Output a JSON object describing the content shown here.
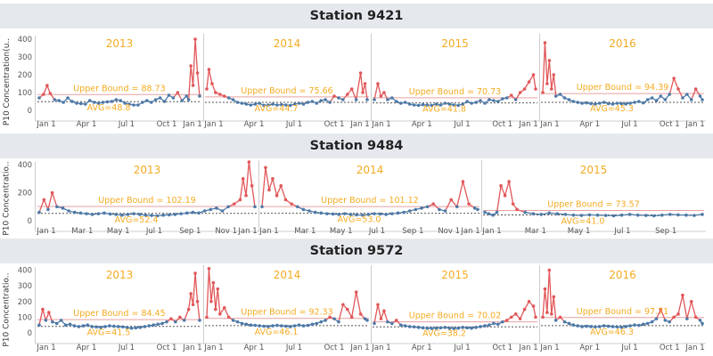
{
  "colors": {
    "normal": "#4e79a7",
    "exceed": "#e15759",
    "label": "#f4ab21",
    "header_bg": "#e5e9ee",
    "upper_line": "#e6a0a0",
    "avg_line": "#555555"
  },
  "chart_data": [
    {
      "type": "line",
      "title": "Station 9421",
      "ylabel": "P10 Concentration(u..",
      "ylim": [
        0,
        420
      ],
      "yticks": [
        0,
        100,
        200,
        300,
        400
      ],
      "panels": [
        {
          "year": "2013",
          "upper_bound_label": "Upper Bound = 88.73",
          "upper_bound": 88.73,
          "avg_label": "AVG=48.8",
          "avg": 48.8,
          "xticks": [
            "Jan 1",
            "Apr 1",
            "Jul 1",
            "Oct 1",
            "Jan 1"
          ],
          "x": [
            0,
            10,
            18,
            25,
            35,
            45,
            55,
            65,
            75,
            85,
            95,
            105,
            115,
            125,
            135,
            145,
            155,
            165,
            175,
            185,
            195,
            205,
            215,
            225,
            235,
            245,
            255,
            265,
            275,
            285,
            295,
            305,
            315,
            325,
            335,
            340,
            345,
            350,
            355,
            360,
            365
          ],
          "y": [
            70,
            90,
            140,
            95,
            60,
            55,
            45,
            70,
            50,
            40,
            38,
            35,
            55,
            45,
            40,
            45,
            48,
            50,
            60,
            55,
            40,
            35,
            30,
            30,
            45,
            55,
            45,
            60,
            70,
            50,
            85,
            70,
            100,
            55,
            80,
            60,
            250,
            140,
            400,
            210,
            80
          ]
        },
        {
          "year": "2014",
          "upper_bound_label": "Upper Bound = 75.66",
          "upper_bound": 75.66,
          "avg_label": "AVG=44.7",
          "avg": 44.7,
          "xticks": [
            "Jan 1",
            "Apr 1",
            "Jul 1",
            "Oct 1",
            "Jan 1"
          ],
          "x": [
            0,
            5,
            12,
            20,
            30,
            40,
            50,
            60,
            70,
            80,
            90,
            100,
            110,
            120,
            130,
            140,
            150,
            160,
            170,
            180,
            190,
            200,
            210,
            220,
            230,
            240,
            250,
            260,
            270,
            280,
            290,
            300,
            310,
            320,
            330,
            340,
            350,
            355,
            360,
            365
          ],
          "y": [
            120,
            230,
            150,
            100,
            90,
            80,
            70,
            60,
            45,
            40,
            35,
            30,
            35,
            40,
            28,
            30,
            35,
            30,
            32,
            30,
            28,
            35,
            40,
            35,
            45,
            50,
            40,
            55,
            60,
            45,
            80,
            70,
            60,
            90,
            120,
            60,
            210,
            100,
            150,
            60
          ]
        },
        {
          "year": "2015",
          "upper_bound_label": "Upper Bound = 70.73",
          "upper_bound": 70.73,
          "avg_label": "AVG=41.8",
          "avg": 41.8,
          "xticks": [
            "Jan 1",
            "Apr 1",
            "Jul 1",
            "Oct 1",
            "Jan 1"
          ],
          "x": [
            0,
            8,
            15,
            22,
            30,
            40,
            50,
            60,
            70,
            80,
            90,
            100,
            110,
            120,
            130,
            140,
            150,
            160,
            170,
            180,
            190,
            200,
            210,
            220,
            230,
            240,
            250,
            260,
            270,
            280,
            290,
            300,
            310,
            320,
            330,
            340,
            350,
            360,
            365
          ],
          "y": [
            60,
            150,
            80,
            100,
            60,
            70,
            50,
            40,
            45,
            35,
            30,
            28,
            32,
            30,
            28,
            35,
            30,
            40,
            35,
            30,
            28,
            35,
            50,
            40,
            45,
            55,
            40,
            60,
            55,
            50,
            65,
            70,
            85,
            60,
            100,
            120,
            160,
            200,
            120
          ]
        },
        {
          "year": "2016",
          "upper_bound_label": "Upper Bound = 94.39",
          "upper_bound": 94.39,
          "avg_label": "AVG=45.3",
          "avg": 45.3,
          "xticks": [
            "Jan 1",
            "Apr 1",
            "Jul 1",
            "Oct 1",
            "Jan 1"
          ],
          "x": [
            0,
            5,
            10,
            15,
            20,
            25,
            30,
            40,
            50,
            60,
            70,
            80,
            90,
            100,
            110,
            120,
            130,
            140,
            150,
            160,
            170,
            180,
            190,
            200,
            210,
            220,
            230,
            240,
            250,
            260,
            270,
            280,
            290,
            300,
            310,
            320,
            330,
            340,
            350,
            360,
            365
          ],
          "y": [
            100,
            380,
            150,
            280,
            120,
            200,
            80,
            90,
            70,
            60,
            50,
            45,
            40,
            42,
            38,
            35,
            40,
            45,
            38,
            35,
            40,
            38,
            36,
            40,
            45,
            50,
            42,
            60,
            70,
            55,
            80,
            60,
            90,
            180,
            120,
            70,
            90,
            60,
            120,
            80,
            60
          ]
        }
      ]
    },
    {
      "type": "line",
      "title": "Station 9484",
      "ylabel": "P10 Concentratio..",
      "ylim": [
        0,
        420
      ],
      "yticks": [
        0,
        200,
        400
      ],
      "panels": [
        {
          "year": "2013",
          "upper_bound_label": "Upper Bound = 102.19",
          "upper_bound": 102.19,
          "avg_label": "AVG=52.4",
          "avg": 52.4,
          "xticks": [
            "Jan 1",
            "Mar 1",
            "May 1",
            "Jul 1",
            "Sep 1",
            "Nov 1",
            "Jan 1"
          ],
          "x": [
            0,
            8,
            15,
            22,
            30,
            40,
            50,
            60,
            70,
            80,
            90,
            100,
            110,
            120,
            130,
            140,
            150,
            160,
            170,
            180,
            190,
            200,
            210,
            220,
            230,
            240,
            250,
            260,
            270,
            280,
            290,
            300,
            310,
            320,
            330,
            340,
            345,
            350,
            355,
            360,
            365
          ],
          "y": [
            60,
            150,
            80,
            200,
            100,
            90,
            70,
            60,
            55,
            50,
            45,
            50,
            55,
            48,
            45,
            40,
            45,
            50,
            45,
            40,
            38,
            35,
            40,
            42,
            45,
            50,
            55,
            60,
            55,
            70,
            80,
            90,
            70,
            100,
            120,
            150,
            300,
            180,
            420,
            250,
            100
          ]
        },
        {
          "year": "2014",
          "upper_bound_label": "Upper Bound = 101.12",
          "upper_bound": 101.12,
          "avg_label": "AVG=53.0",
          "avg": 53.0,
          "xticks": [
            "Jan 1",
            "Mar 1",
            "May 1",
            "Jul 1",
            "Sep 1",
            "Nov 1",
            "Jan 1"
          ],
          "x": [
            0,
            6,
            12,
            18,
            25,
            32,
            40,
            50,
            60,
            70,
            80,
            90,
            100,
            110,
            120,
            130,
            140,
            150,
            160,
            170,
            180,
            190,
            200,
            210,
            220,
            230,
            240,
            250,
            260,
            270,
            280,
            290,
            300,
            310,
            320,
            330,
            340,
            350,
            360,
            365
          ],
          "y": [
            100,
            380,
            220,
            300,
            180,
            250,
            150,
            120,
            100,
            80,
            70,
            60,
            55,
            50,
            48,
            45,
            50,
            45,
            42,
            40,
            45,
            50,
            48,
            45,
            50,
            55,
            60,
            70,
            80,
            90,
            100,
            120,
            80,
            70,
            150,
            100,
            280,
            120,
            90,
            80
          ]
        },
        {
          "year": "2015",
          "upper_bound_label": "Upper Bound = 73.57",
          "upper_bound": 73.57,
          "avg_label": "AVG=41.0",
          "avg": 41.0,
          "xticks": [
            "Jan 1",
            "Mar 1",
            "May 1",
            "Jul 1",
            "Sep 1"
          ],
          "x": [
            0,
            5,
            10,
            15,
            20,
            25,
            30,
            35,
            40,
            50,
            60,
            70,
            80,
            90,
            100,
            110,
            120,
            130,
            140,
            150,
            160,
            170,
            180,
            190,
            200,
            210,
            220,
            230,
            240,
            250,
            260,
            270
          ],
          "y": [
            60,
            50,
            40,
            60,
            250,
            180,
            280,
            120,
            80,
            60,
            50,
            45,
            55,
            50,
            45,
            40,
            38,
            42,
            40,
            38,
            35,
            40,
            45,
            40,
            38,
            35,
            40,
            45,
            42,
            40,
            38,
            45
          ]
        }
      ]
    },
    {
      "type": "line",
      "title": "Station 9572",
      "ylabel": "P10 Concentratio..",
      "ylim": [
        0,
        420
      ],
      "yticks": [
        0,
        100,
        200,
        300,
        400
      ],
      "panels": [
        {
          "year": "2013",
          "upper_bound_label": "Upper Bound = 84.45",
          "upper_bound": 84.45,
          "avg_label": "AVG=41.5",
          "avg": 41.5,
          "xticks": [
            "Jan 1",
            "Apr 1",
            "Jul 1",
            "Oct 1",
            "Jan 1"
          ],
          "x": [
            0,
            8,
            15,
            22,
            30,
            40,
            50,
            60,
            70,
            80,
            90,
            100,
            110,
            120,
            130,
            140,
            150,
            160,
            170,
            180,
            190,
            200,
            210,
            220,
            230,
            240,
            250,
            260,
            270,
            280,
            290,
            300,
            310,
            320,
            330,
            340,
            345,
            350,
            355,
            360,
            365
          ],
          "y": [
            50,
            150,
            80,
            130,
            70,
            60,
            80,
            50,
            55,
            45,
            40,
            45,
            50,
            40,
            38,
            35,
            40,
            45,
            42,
            40,
            38,
            35,
            30,
            32,
            35,
            40,
            45,
            50,
            55,
            60,
            70,
            90,
            70,
            100,
            80,
            150,
            250,
            180,
            380,
            200,
            80
          ]
        },
        {
          "year": "2014",
          "upper_bound_label": "Upper Bound = 92.33",
          "upper_bound": 92.33,
          "avg_label": "AVG=46.1",
          "avg": 46.1,
          "xticks": [
            "Jan 1",
            "Apr 1",
            "Jul 1",
            "Oct 1",
            "Jan 1"
          ],
          "x": [
            0,
            5,
            10,
            15,
            20,
            25,
            30,
            40,
            50,
            60,
            70,
            80,
            90,
            100,
            110,
            120,
            130,
            140,
            150,
            160,
            170,
            180,
            190,
            200,
            210,
            220,
            230,
            240,
            250,
            260,
            270,
            280,
            290,
            300,
            310,
            320,
            330,
            340,
            350,
            360,
            365
          ],
          "y": [
            100,
            410,
            200,
            320,
            150,
            280,
            120,
            160,
            100,
            80,
            70,
            60,
            55,
            50,
            48,
            45,
            42,
            40,
            45,
            48,
            45,
            42,
            40,
            45,
            50,
            45,
            48,
            55,
            60,
            70,
            80,
            100,
            90,
            70,
            180,
            150,
            100,
            260,
            120,
            90,
            80
          ]
        },
        {
          "year": "2015",
          "upper_bound_label": "Upper Bound = 70.02",
          "upper_bound": 70.02,
          "avg_label": "AVG=38.2",
          "avg": 38.2,
          "xticks": [
            "Jan 1",
            "Apr 1",
            "Jul 1",
            "Oct 1",
            "Jan 1"
          ],
          "x": [
            0,
            8,
            15,
            22,
            30,
            40,
            50,
            60,
            70,
            80,
            90,
            100,
            110,
            120,
            130,
            140,
            150,
            160,
            170,
            180,
            190,
            200,
            210,
            220,
            230,
            240,
            250,
            260,
            270,
            280,
            290,
            300,
            310,
            320,
            330,
            340,
            350,
            360,
            365
          ],
          "y": [
            60,
            180,
            90,
            140,
            70,
            60,
            80,
            50,
            45,
            40,
            38,
            35,
            32,
            30,
            28,
            30,
            32,
            35,
            30,
            28,
            30,
            35,
            32,
            30,
            35,
            40,
            45,
            50,
            60,
            55,
            70,
            80,
            100,
            120,
            90,
            150,
            200,
            170,
            100
          ]
        },
        {
          "year": "2016",
          "upper_bound_label": "Upper Bound = 97.71",
          "upper_bound": 97.71,
          "avg_label": "AVG=46.3",
          "avg": 46.3,
          "xticks": [
            "Jan 1",
            "Apr 1",
            "Jul 1",
            "Oct 1",
            "Jan 1"
          ],
          "x": [
            0,
            5,
            10,
            15,
            20,
            25,
            30,
            40,
            50,
            60,
            70,
            80,
            90,
            100,
            110,
            120,
            130,
            140,
            150,
            160,
            170,
            180,
            190,
            200,
            210,
            220,
            230,
            240,
            250,
            260,
            270,
            280,
            290,
            300,
            310,
            320,
            330,
            340,
            350,
            360,
            365
          ],
          "y": [
            100,
            280,
            130,
            400,
            120,
            230,
            80,
            100,
            70,
            60,
            50,
            45,
            40,
            42,
            40,
            38,
            40,
            45,
            42,
            40,
            38,
            36,
            40,
            45,
            50,
            48,
            55,
            60,
            70,
            90,
            150,
            80,
            70,
            100,
            120,
            240,
            90,
            200,
            100,
            80,
            60
          ]
        }
      ]
    }
  ]
}
